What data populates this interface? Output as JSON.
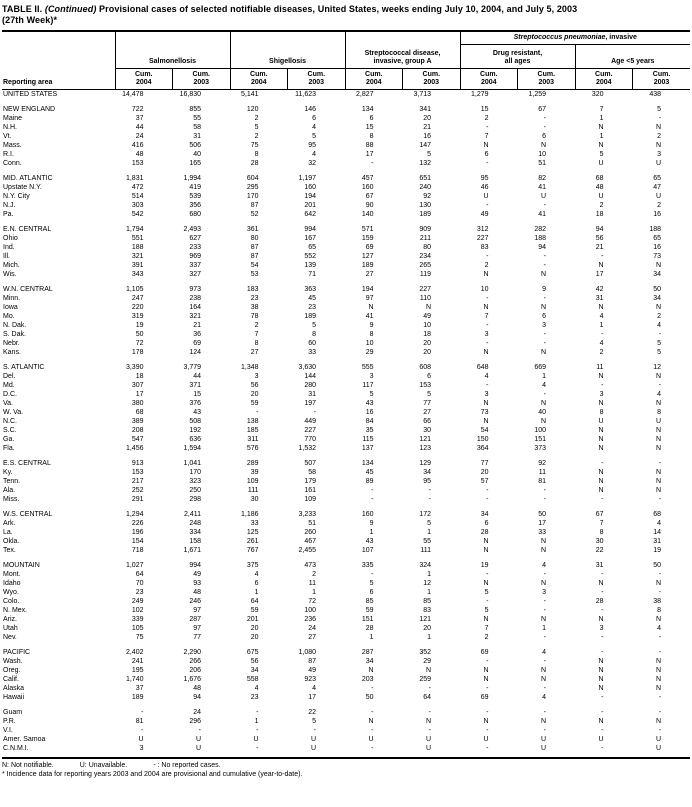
{
  "title": {
    "table_label": "TABLE II.",
    "continued": "(Continued)",
    "text": "Provisional cases of selected notifiable diseases, United States, weeks ending July 10, 2004, and July 5, 2003",
    "line2": "(27th Week)*"
  },
  "header": {
    "reporting_area_label": "Reporting area",
    "pneumo_group": {
      "italic": "Streptococcus pneumoniae",
      "suffix": ", invasive"
    },
    "groups": [
      {
        "lines": [
          "Salmonellosis"
        ]
      },
      {
        "lines": [
          "Shigellosis"
        ]
      },
      {
        "lines": [
          "Streptococcal disease,",
          "invasive, group A"
        ]
      },
      {
        "lines": [
          "Drug resistant,",
          "all ages"
        ]
      },
      {
        "lines": [
          "Age <5 years"
        ]
      }
    ],
    "subcol": {
      "line1": "Cum.",
      "years": [
        "2004",
        "2003"
      ]
    }
  },
  "sections": [
    {
      "rows": [
        {
          "area": "UNITED STATES",
          "values": [
            "14,478",
            "16,830",
            "5,141",
            "11,623",
            "2,827",
            "3,713",
            "1,279",
            "1,259",
            "320",
            "438"
          ]
        }
      ]
    },
    {
      "rows": [
        {
          "area": "NEW ENGLAND",
          "values": [
            "722",
            "855",
            "120",
            "146",
            "134",
            "341",
            "15",
            "67",
            "7",
            "5"
          ]
        },
        {
          "area": "Maine",
          "values": [
            "37",
            "55",
            "2",
            "6",
            "6",
            "20",
            "2",
            "-",
            "1",
            "-"
          ]
        },
        {
          "area": "N.H.",
          "values": [
            "44",
            "58",
            "5",
            "4",
            "15",
            "21",
            "-",
            "-",
            "N",
            "N"
          ]
        },
        {
          "area": "Vt.",
          "values": [
            "24",
            "31",
            "2",
            "5",
            "8",
            "16",
            "7",
            "6",
            "1",
            "2"
          ]
        },
        {
          "area": "Mass.",
          "values": [
            "416",
            "506",
            "75",
            "95",
            "88",
            "147",
            "N",
            "N",
            "N",
            "N"
          ]
        },
        {
          "area": "R.I.",
          "values": [
            "48",
            "40",
            "8",
            "4",
            "17",
            "5",
            "6",
            "10",
            "5",
            "3"
          ]
        },
        {
          "area": "Conn.",
          "values": [
            "153",
            "165",
            "28",
            "32",
            "-",
            "132",
            "-",
            "51",
            "U",
            "U"
          ]
        }
      ]
    },
    {
      "rows": [
        {
          "area": "MID. ATLANTIC",
          "values": [
            "1,831",
            "1,994",
            "604",
            "1,197",
            "457",
            "651",
            "95",
            "82",
            "68",
            "65"
          ]
        },
        {
          "area": "Upstate N.Y.",
          "values": [
            "472",
            "419",
            "295",
            "160",
            "160",
            "240",
            "46",
            "41",
            "48",
            "47"
          ]
        },
        {
          "area": "N.Y. City",
          "values": [
            "514",
            "539",
            "170",
            "194",
            "67",
            "92",
            "U",
            "U",
            "U",
            "U"
          ]
        },
        {
          "area": "N.J.",
          "values": [
            "303",
            "356",
            "87",
            "201",
            "90",
            "130",
            "-",
            "-",
            "2",
            "2"
          ]
        },
        {
          "area": "Pa.",
          "values": [
            "542",
            "680",
            "52",
            "642",
            "140",
            "189",
            "49",
            "41",
            "18",
            "16"
          ]
        }
      ]
    },
    {
      "rows": [
        {
          "area": "E.N. CENTRAL",
          "values": [
            "1,794",
            "2,493",
            "361",
            "994",
            "571",
            "909",
            "312",
            "282",
            "94",
            "188"
          ]
        },
        {
          "area": "Ohio",
          "values": [
            "551",
            "627",
            "80",
            "167",
            "159",
            "211",
            "227",
            "188",
            "56",
            "65"
          ]
        },
        {
          "area": "Ind.",
          "values": [
            "188",
            "233",
            "87",
            "65",
            "69",
            "80",
            "83",
            "94",
            "21",
            "16"
          ]
        },
        {
          "area": "Ill.",
          "values": [
            "321",
            "969",
            "87",
            "552",
            "127",
            "234",
            "-",
            "-",
            "-",
            "73"
          ]
        },
        {
          "area": "Mich.",
          "values": [
            "391",
            "337",
            "54",
            "139",
            "189",
            "265",
            "2",
            "-",
            "N",
            "N"
          ]
        },
        {
          "area": "Wis.",
          "values": [
            "343",
            "327",
            "53",
            "71",
            "27",
            "119",
            "N",
            "N",
            "17",
            "34"
          ]
        }
      ]
    },
    {
      "rows": [
        {
          "area": "W.N. CENTRAL",
          "values": [
            "1,105",
            "973",
            "183",
            "363",
            "194",
            "227",
            "10",
            "9",
            "42",
            "50"
          ]
        },
        {
          "area": "Minn.",
          "values": [
            "247",
            "238",
            "23",
            "45",
            "97",
            "110",
            "-",
            "-",
            "31",
            "34"
          ]
        },
        {
          "area": "Iowa",
          "values": [
            "220",
            "164",
            "38",
            "23",
            "N",
            "N",
            "N",
            "N",
            "N",
            "N"
          ]
        },
        {
          "area": "Mo.",
          "values": [
            "319",
            "321",
            "78",
            "189",
            "41",
            "49",
            "7",
            "6",
            "4",
            "2"
          ]
        },
        {
          "area": "N. Dak.",
          "values": [
            "19",
            "21",
            "2",
            "5",
            "9",
            "10",
            "-",
            "3",
            "1",
            "4"
          ]
        },
        {
          "area": "S. Dak.",
          "values": [
            "50",
            "36",
            "7",
            "8",
            "8",
            "18",
            "3",
            "-",
            "-",
            "-"
          ]
        },
        {
          "area": "Nebr.",
          "values": [
            "72",
            "69",
            "8",
            "60",
            "10",
            "20",
            "-",
            "-",
            "4",
            "5"
          ]
        },
        {
          "area": "Kans.",
          "values": [
            "178",
            "124",
            "27",
            "33",
            "29",
            "20",
            "N",
            "N",
            "2",
            "5"
          ]
        }
      ]
    },
    {
      "rows": [
        {
          "area": "S. ATLANTIC",
          "values": [
            "3,390",
            "3,779",
            "1,348",
            "3,630",
            "555",
            "608",
            "648",
            "669",
            "11",
            "12"
          ]
        },
        {
          "area": "Del.",
          "values": [
            "18",
            "44",
            "3",
            "144",
            "3",
            "6",
            "4",
            "1",
            "N",
            "N"
          ]
        },
        {
          "area": "Md.",
          "values": [
            "307",
            "371",
            "56",
            "280",
            "117",
            "153",
            "-",
            "4",
            "-",
            "-"
          ]
        },
        {
          "area": "D.C.",
          "values": [
            "17",
            "15",
            "20",
            "31",
            "5",
            "5",
            "3",
            "-",
            "3",
            "4"
          ]
        },
        {
          "area": "Va.",
          "values": [
            "380",
            "376",
            "59",
            "197",
            "43",
            "77",
            "N",
            "N",
            "N",
            "N"
          ]
        },
        {
          "area": "W. Va.",
          "values": [
            "68",
            "43",
            "-",
            "-",
            "16",
            "27",
            "73",
            "40",
            "8",
            "8"
          ]
        },
        {
          "area": "N.C.",
          "values": [
            "389",
            "508",
            "138",
            "449",
            "84",
            "66",
            "N",
            "N",
            "U",
            "U"
          ]
        },
        {
          "area": "S.C.",
          "values": [
            "208",
            "192",
            "185",
            "227",
            "35",
            "30",
            "54",
            "100",
            "N",
            "N"
          ]
        },
        {
          "area": "Ga.",
          "values": [
            "547",
            "636",
            "311",
            "770",
            "115",
            "121",
            "150",
            "151",
            "N",
            "N"
          ]
        },
        {
          "area": "Fla.",
          "values": [
            "1,456",
            "1,594",
            "576",
            "1,532",
            "137",
            "123",
            "364",
            "373",
            "N",
            "N"
          ]
        }
      ]
    },
    {
      "rows": [
        {
          "area": "E.S. CENTRAL",
          "values": [
            "913",
            "1,041",
            "289",
            "507",
            "134",
            "129",
            "77",
            "92",
            "-",
            "-"
          ]
        },
        {
          "area": "Ky.",
          "values": [
            "153",
            "170",
            "39",
            "58",
            "45",
            "34",
            "20",
            "11",
            "N",
            "N"
          ]
        },
        {
          "area": "Tenn.",
          "values": [
            "217",
            "323",
            "109",
            "179",
            "89",
            "95",
            "57",
            "81",
            "N",
            "N"
          ]
        },
        {
          "area": "Ala.",
          "values": [
            "252",
            "250",
            "111",
            "161",
            "-",
            "-",
            "-",
            "-",
            "N",
            "N"
          ]
        },
        {
          "area": "Miss.",
          "values": [
            "291",
            "298",
            "30",
            "109",
            "-",
            "-",
            "-",
            "-",
            "-",
            "-"
          ]
        }
      ]
    },
    {
      "rows": [
        {
          "area": "W.S. CENTRAL",
          "values": [
            "1,294",
            "2,411",
            "1,186",
            "3,233",
            "160",
            "172",
            "34",
            "50",
            "67",
            "68"
          ]
        },
        {
          "area": "Ark.",
          "values": [
            "226",
            "248",
            "33",
            "51",
            "9",
            "5",
            "6",
            "17",
            "7",
            "4"
          ]
        },
        {
          "area": "La.",
          "values": [
            "196",
            "334",
            "125",
            "260",
            "1",
            "1",
            "28",
            "33",
            "8",
            "14"
          ]
        },
        {
          "area": "Okla.",
          "values": [
            "154",
            "158",
            "261",
            "467",
            "43",
            "55",
            "N",
            "N",
            "30",
            "31"
          ]
        },
        {
          "area": "Tex.",
          "values": [
            "718",
            "1,671",
            "767",
            "2,455",
            "107",
            "111",
            "N",
            "N",
            "22",
            "19"
          ]
        }
      ]
    },
    {
      "rows": [
        {
          "area": "MOUNTAIN",
          "values": [
            "1,027",
            "994",
            "375",
            "473",
            "335",
            "324",
            "19",
            "4",
            "31",
            "50"
          ]
        },
        {
          "area": "Mont.",
          "values": [
            "64",
            "49",
            "4",
            "2",
            "-",
            "1",
            "-",
            "-",
            "-",
            "-"
          ]
        },
        {
          "area": "Idaho",
          "values": [
            "70",
            "93",
            "6",
            "11",
            "5",
            "12",
            "N",
            "N",
            "N",
            "N"
          ]
        },
        {
          "area": "Wyo.",
          "values": [
            "23",
            "48",
            "1",
            "1",
            "6",
            "1",
            "5",
            "3",
            "-",
            "-"
          ]
        },
        {
          "area": "Colo.",
          "values": [
            "249",
            "246",
            "64",
            "72",
            "85",
            "85",
            "-",
            "-",
            "28",
            "38"
          ]
        },
        {
          "area": "N. Mex.",
          "values": [
            "102",
            "97",
            "59",
            "100",
            "59",
            "83",
            "5",
            "-",
            "-",
            "8"
          ]
        },
        {
          "area": "Ariz.",
          "values": [
            "339",
            "287",
            "201",
            "236",
            "151",
            "121",
            "N",
            "N",
            "N",
            "N"
          ]
        },
        {
          "area": "Utah",
          "values": [
            "105",
            "97",
            "20",
            "24",
            "28",
            "20",
            "7",
            "1",
            "3",
            "4"
          ]
        },
        {
          "area": "Nev.",
          "values": [
            "75",
            "77",
            "20",
            "27",
            "1",
            "1",
            "2",
            "-",
            "-",
            "-"
          ]
        }
      ]
    },
    {
      "rows": [
        {
          "area": "PACIFIC",
          "values": [
            "2,402",
            "2,290",
            "675",
            "1,080",
            "287",
            "352",
            "69",
            "4",
            "-",
            "-"
          ]
        },
        {
          "area": "Wash.",
          "values": [
            "241",
            "266",
            "56",
            "87",
            "34",
            "29",
            "-",
            "-",
            "N",
            "N"
          ]
        },
        {
          "area": "Oreg.",
          "values": [
            "195",
            "206",
            "34",
            "49",
            "N",
            "N",
            "N",
            "N",
            "N",
            "N"
          ]
        },
        {
          "area": "Calif.",
          "values": [
            "1,740",
            "1,676",
            "558",
            "923",
            "203",
            "259",
            "N",
            "N",
            "N",
            "N"
          ]
        },
        {
          "area": "Alaska",
          "values": [
            "37",
            "48",
            "4",
            "4",
            "-",
            "-",
            "-",
            "-",
            "N",
            "N"
          ]
        },
        {
          "area": "Hawaii",
          "values": [
            "189",
            "94",
            "23",
            "17",
            "50",
            "64",
            "69",
            "4",
            "-",
            "-"
          ]
        }
      ]
    },
    {
      "rows": [
        {
          "area": "Guam",
          "values": [
            "-",
            "24",
            "-",
            "22",
            "-",
            "-",
            "-",
            "-",
            "-",
            "-"
          ]
        },
        {
          "area": "P.R.",
          "values": [
            "81",
            "296",
            "1",
            "5",
            "N",
            "N",
            "N",
            "N",
            "N",
            "N"
          ]
        },
        {
          "area": "V.I.",
          "values": [
            "-",
            "-",
            "-",
            "-",
            "-",
            "-",
            "-",
            "-",
            "-",
            "-"
          ]
        },
        {
          "area": "Amer. Samoa",
          "values": [
            "U",
            "U",
            "U",
            "U",
            "U",
            "U",
            "U",
            "U",
            "U",
            "U"
          ]
        },
        {
          "area": "C.N.M.I.",
          "values": [
            "3",
            "U",
            "-",
            "U",
            "-",
            "U",
            "-",
            "U",
            "-",
            "U"
          ]
        }
      ]
    }
  ],
  "footnotes": {
    "legend": [
      "N: Not notifiable.",
      "U: Unavailable.",
      "- : No reported cases."
    ],
    "note": "* Incidence data for reporting years 2003 and 2004 are provisional and cumulative (year-to-date)."
  }
}
